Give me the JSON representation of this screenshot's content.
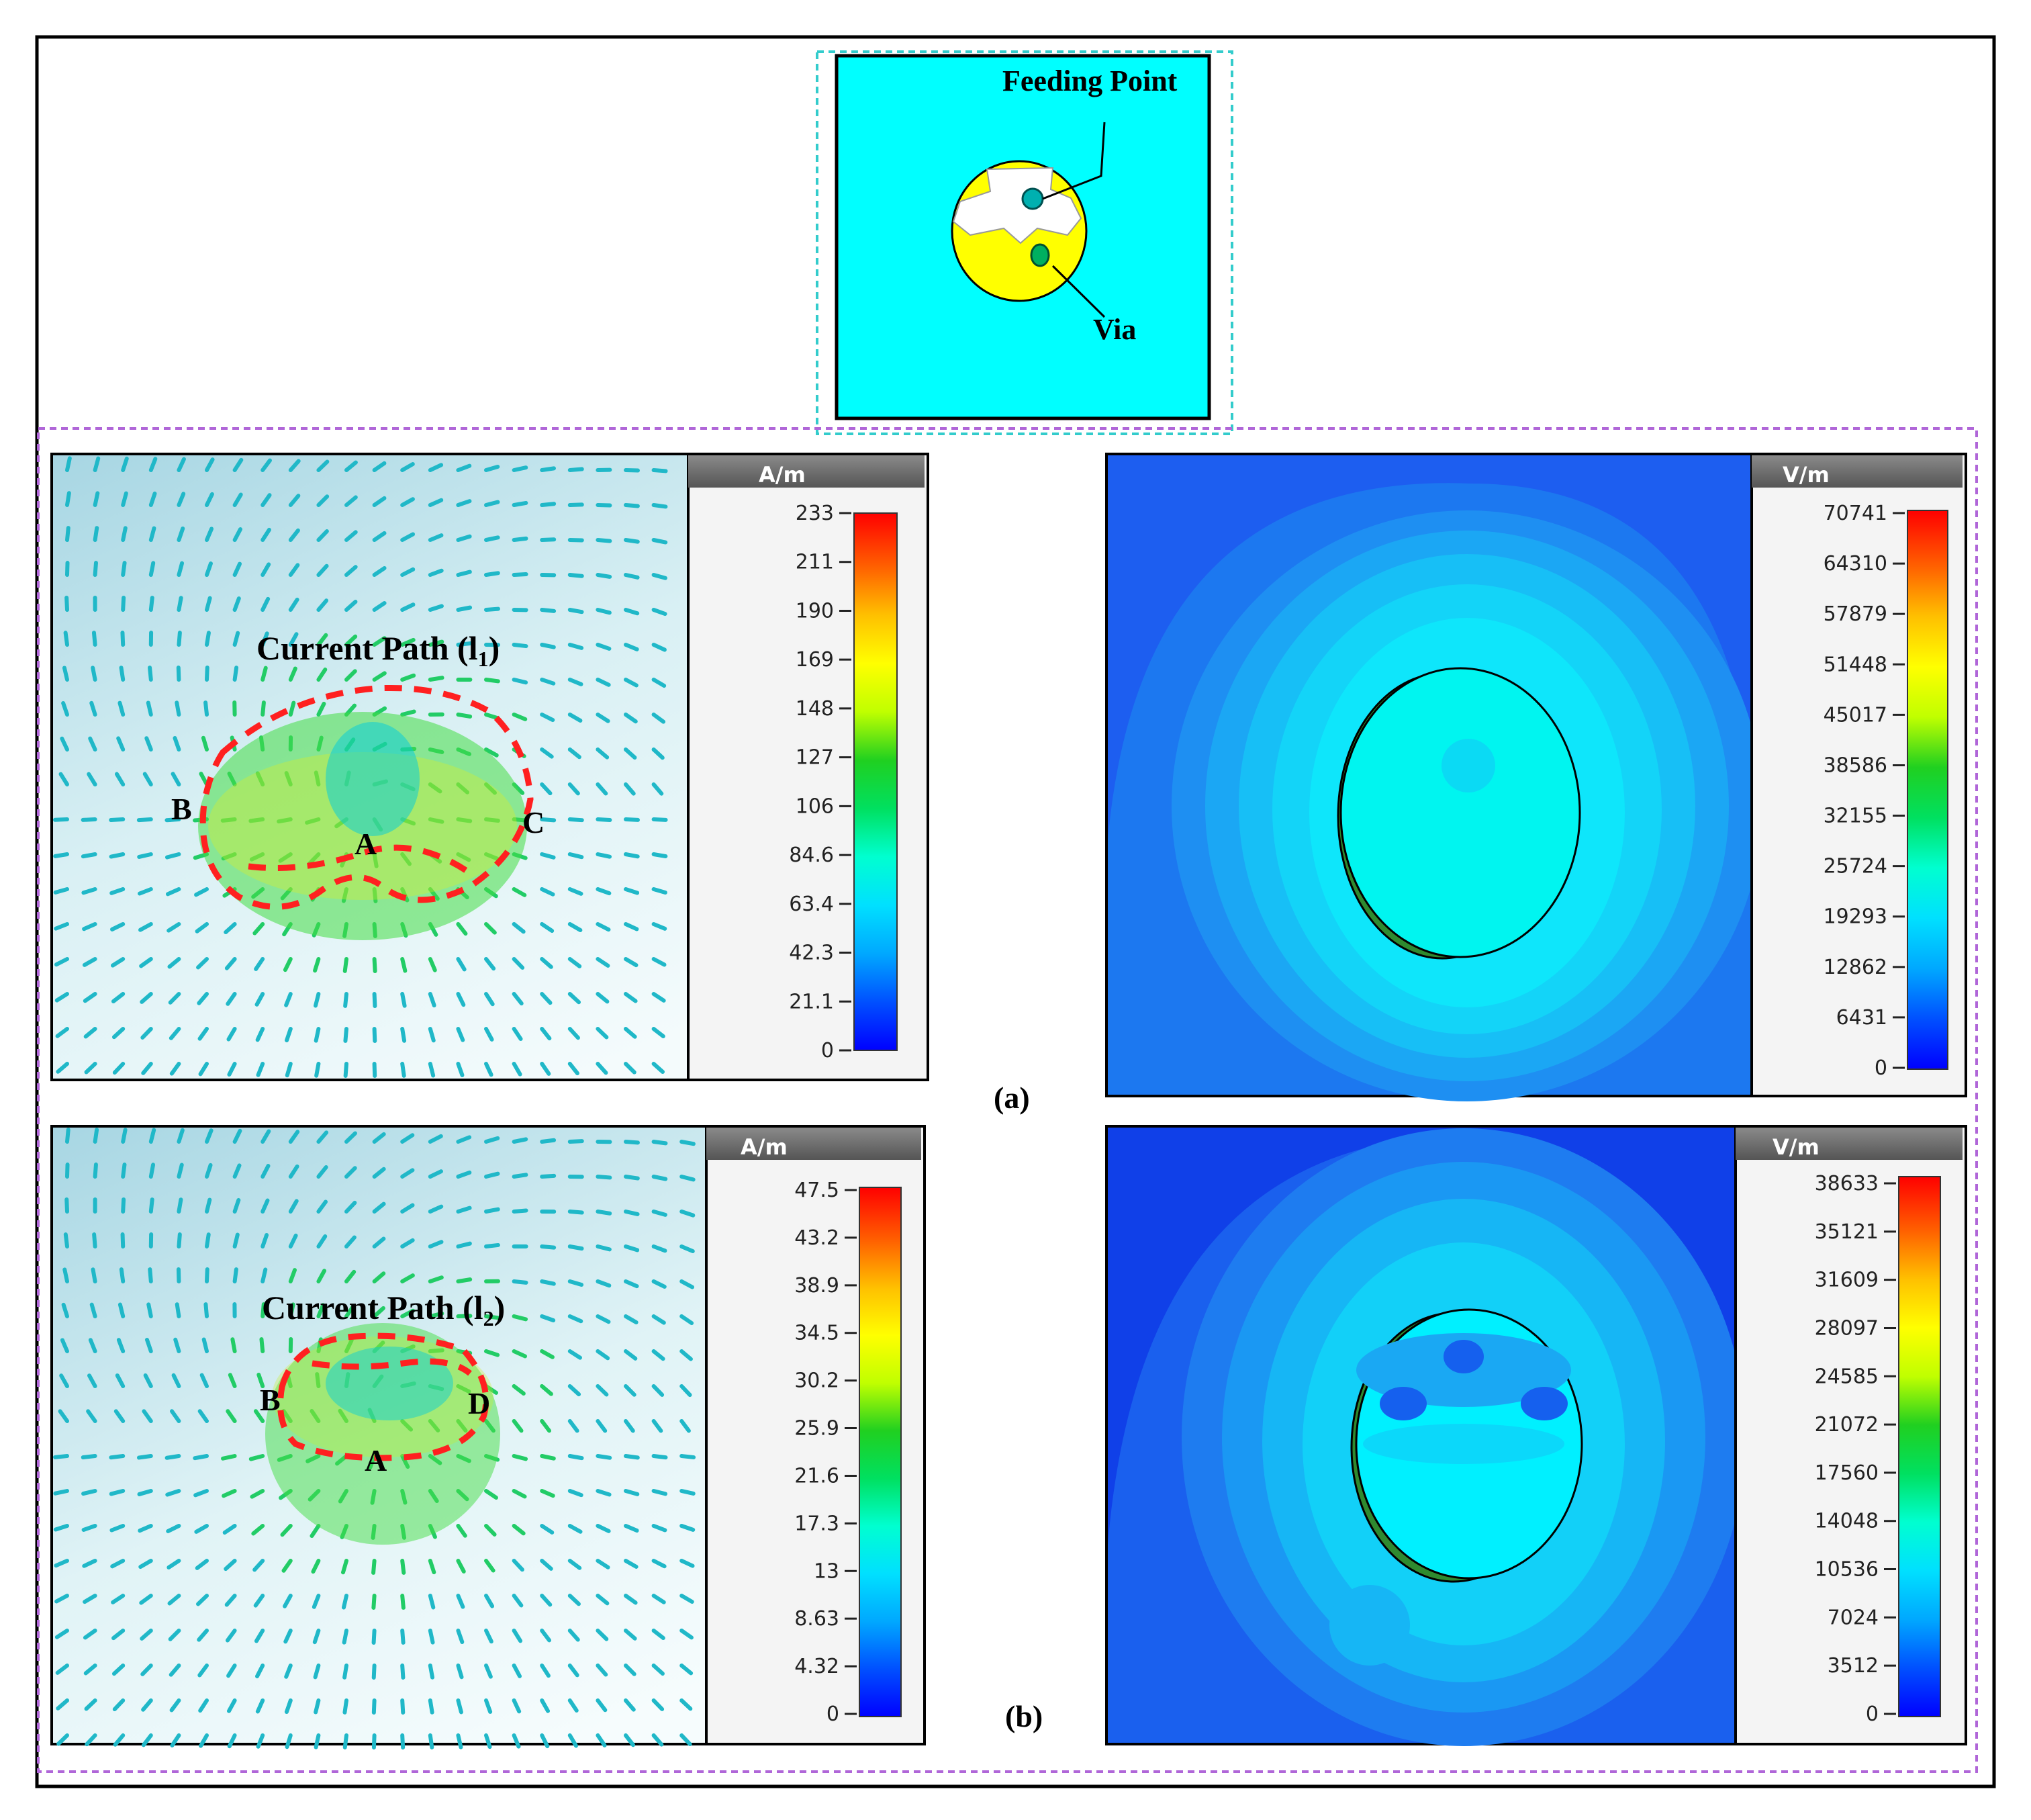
{
  "inset": {
    "feeding_label": "Feeding Point",
    "via_label": "Via"
  },
  "panel_a": {
    "caption": "(a)",
    "current": {
      "unit": "A/m",
      "path_label": "Current Path (l",
      "path_sub": "1",
      "path_close": ")",
      "point_labels": [
        "B",
        "A",
        "C"
      ],
      "scale_ticks": [
        "233",
        "211",
        "190",
        "169",
        "148",
        "127",
        "106",
        "84.6",
        "63.4",
        "42.3",
        "21.1",
        "0"
      ]
    },
    "efield": {
      "unit": "V/m",
      "scale_ticks": [
        "70741",
        "64310",
        "57879",
        "51448",
        "45017",
        "38586",
        "32155",
        "25724",
        "19293",
        "12862",
        "6431",
        "0"
      ]
    }
  },
  "panel_b": {
    "caption": "(b)",
    "current": {
      "unit": "A/m",
      "path_label": "Current  Path (l",
      "path_sub": "2",
      "path_close": ")",
      "point_labels": [
        "B",
        "A",
        "D"
      ],
      "scale_ticks": [
        "47.5",
        "43.2",
        "38.9",
        "34.5",
        "30.2",
        "25.9",
        "21.6",
        "17.3",
        "13",
        "8.63",
        "4.32",
        "0"
      ]
    },
    "efield": {
      "unit": "V/m",
      "scale_ticks": [
        "38633",
        "35121",
        "31609",
        "28097",
        "24585",
        "21072",
        "17560",
        "14048",
        "10536",
        "7024",
        "3512",
        "0"
      ]
    }
  },
  "colors": {
    "substrate": "#00ffff",
    "patch": "#ffff00",
    "path": "#ff2020",
    "border_cyan": "#33cccc",
    "border_purple": "#b066d8"
  }
}
